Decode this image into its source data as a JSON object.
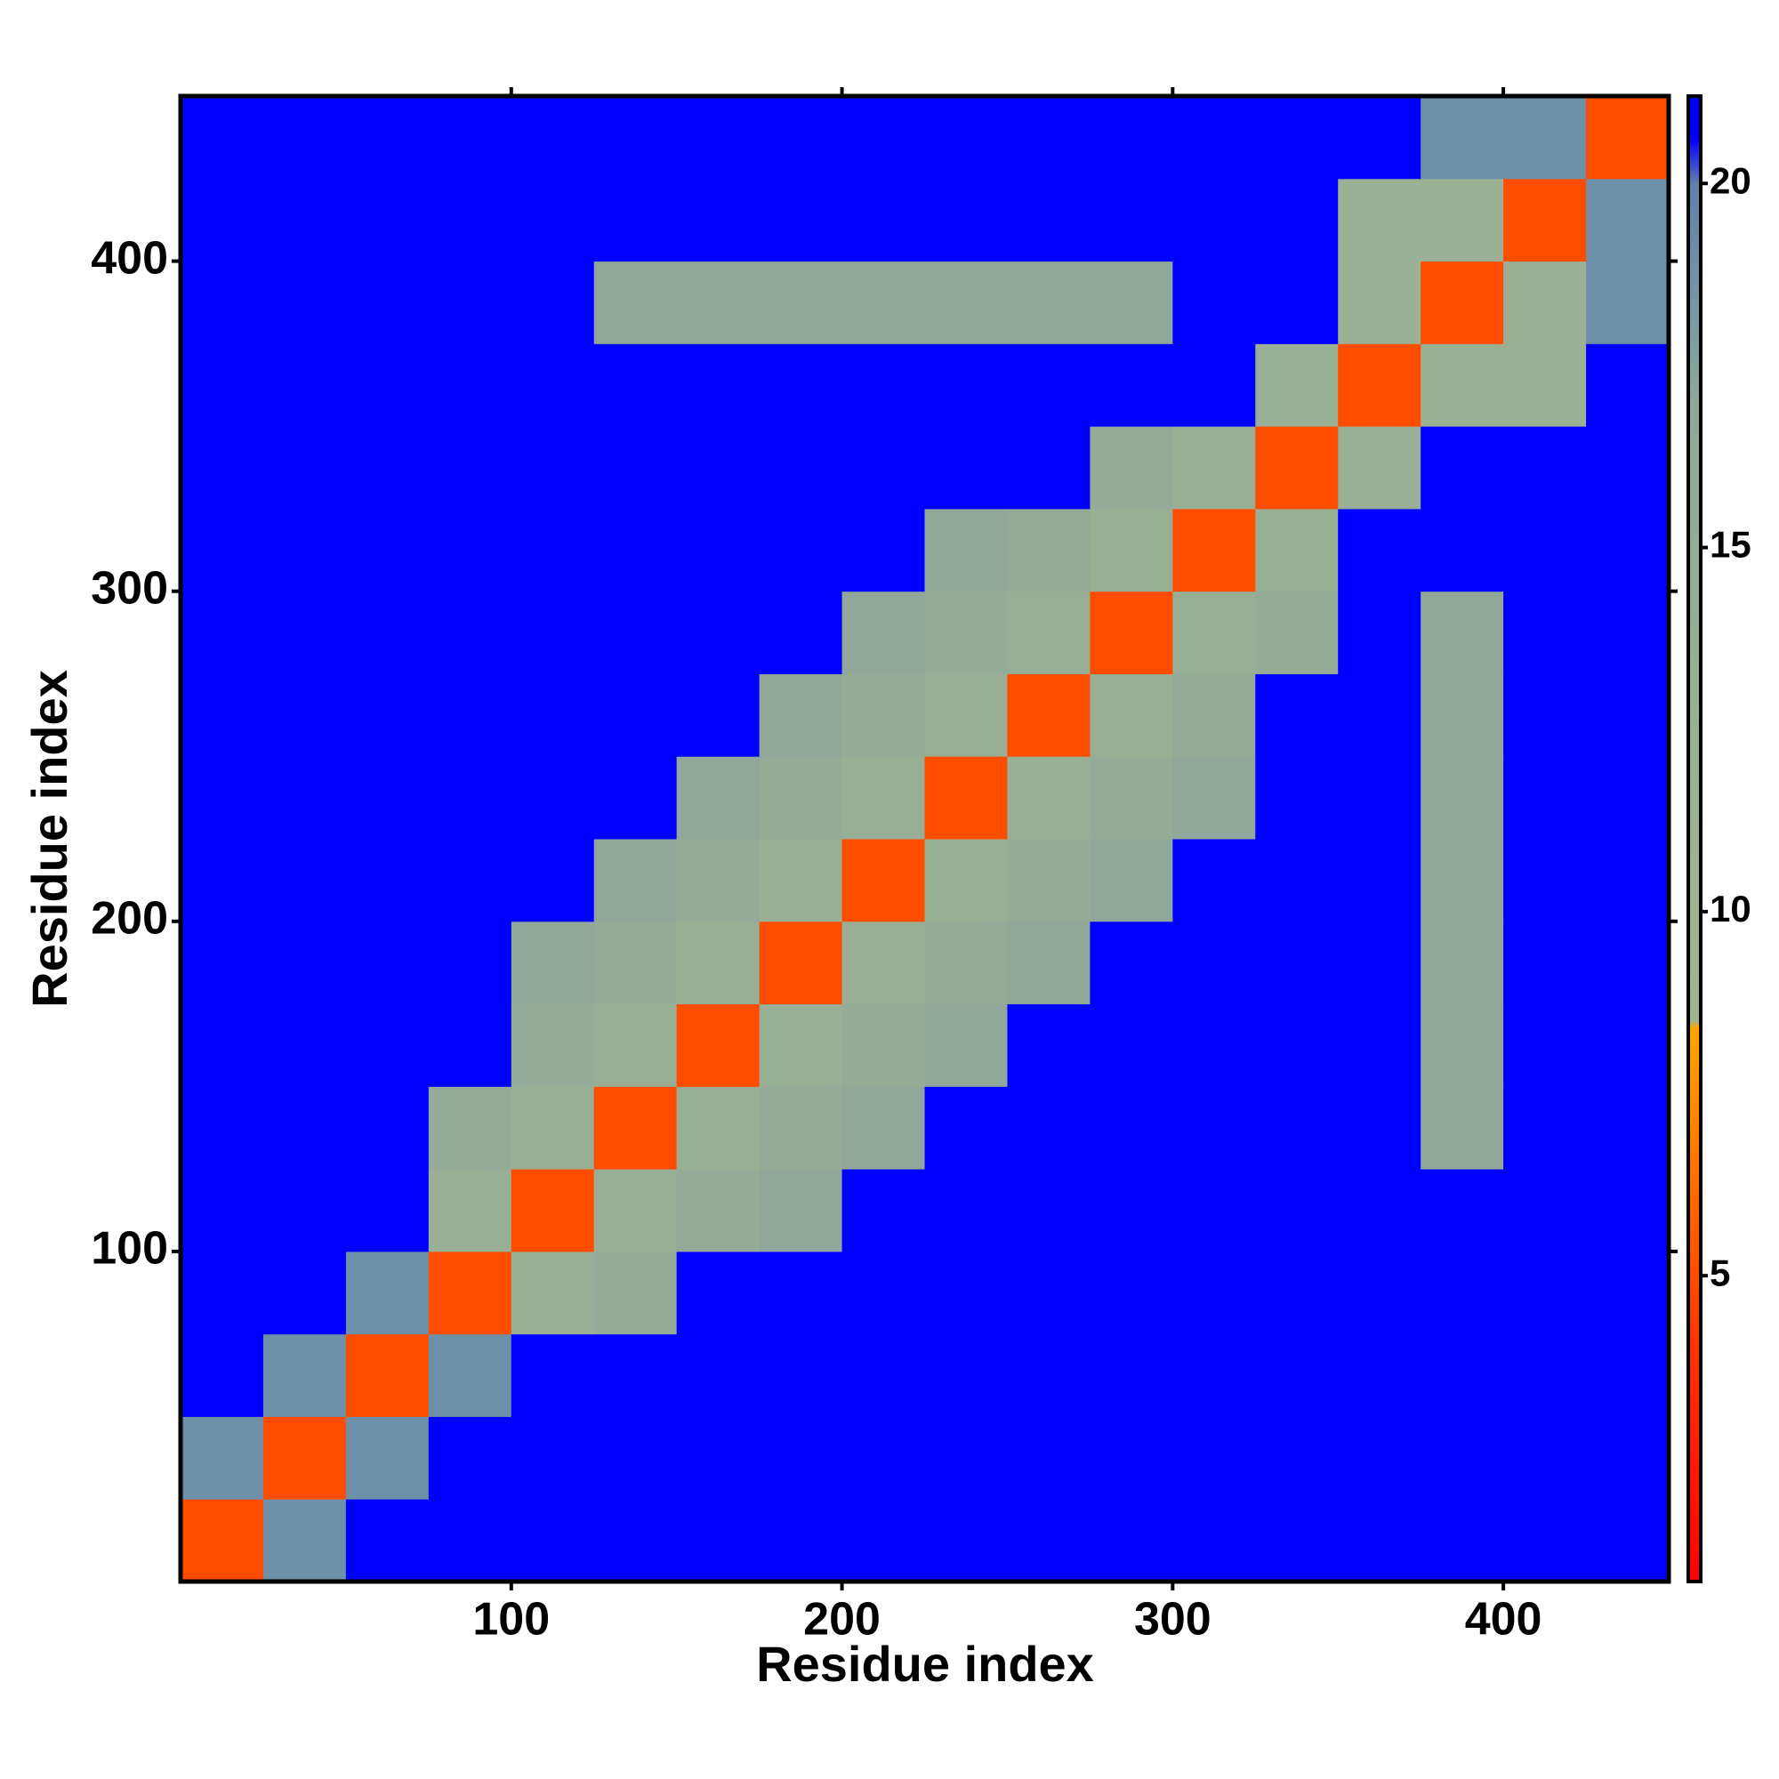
{
  "chart_data": {
    "type": "heatmap",
    "x_label": "Residue index",
    "y_label": "Residue index",
    "x_bins": [
      0,
      25,
      50,
      75,
      100,
      125,
      150,
      175,
      200,
      225,
      250,
      275,
      300,
      325,
      350,
      375,
      400,
      425,
      450
    ],
    "y_bins": [
      0,
      25,
      50,
      75,
      100,
      125,
      150,
      175,
      200,
      225,
      250,
      275,
      300,
      325,
      350,
      375,
      400,
      425,
      450
    ],
    "xlim": [
      0,
      450
    ],
    "ylim": [
      0,
      450
    ],
    "xticks": [
      100,
      200,
      300,
      400
    ],
    "yticks": [
      100,
      200,
      300,
      400
    ],
    "zlim": [
      0.8,
      21.2
    ],
    "colorbar_ticks": [
      5,
      10,
      15,
      20
    ],
    "colorscale": [
      [
        0.8,
        "#ff0000"
      ],
      [
        4,
        "#ff3300"
      ],
      [
        8.4,
        "#ffa500"
      ],
      [
        8.5,
        "#a3b58f"
      ],
      [
        17,
        "#8fa89a"
      ],
      [
        20,
        "#5c82ad"
      ],
      [
        20.6,
        "#0000ff"
      ],
      [
        21.2,
        "#0000ff"
      ]
    ],
    "z": [
      [
        5,
        19,
        21,
        21,
        21,
        21,
        21,
        21,
        21,
        21,
        21,
        21,
        21,
        21,
        21,
        21,
        21,
        21
      ],
      [
        19,
        5,
        19,
        21,
        21,
        21,
        21,
        21,
        21,
        21,
        21,
        21,
        21,
        21,
        21,
        21,
        21,
        21
      ],
      [
        21,
        19,
        5,
        19,
        21,
        21,
        21,
        21,
        21,
        21,
        21,
        21,
        21,
        21,
        21,
        21,
        21,
        21
      ],
      [
        21,
        21,
        19,
        5,
        13,
        15,
        21,
        21,
        21,
        21,
        21,
        21,
        21,
        21,
        21,
        21,
        21,
        21
      ],
      [
        21,
        21,
        21,
        13,
        5,
        13,
        15,
        17,
        21,
        21,
        21,
        21,
        21,
        21,
        21,
        21,
        21,
        21
      ],
      [
        21,
        21,
        21,
        15,
        13,
        5,
        13,
        15,
        17,
        21,
        21,
        21,
        21,
        21,
        21,
        17,
        21,
        21
      ],
      [
        21,
        21,
        21,
        21,
        15,
        13,
        5,
        13,
        15,
        17,
        21,
        21,
        21,
        21,
        21,
        17,
        21,
        21
      ],
      [
        21,
        21,
        21,
        21,
        17,
        15,
        13,
        5,
        13,
        15,
        17,
        21,
        21,
        21,
        21,
        17,
        21,
        21
      ],
      [
        21,
        21,
        21,
        21,
        21,
        17,
        15,
        13,
        5,
        13,
        15,
        17,
        21,
        21,
        21,
        17,
        21,
        21
      ],
      [
        21,
        21,
        21,
        21,
        21,
        21,
        17,
        15,
        13,
        5,
        13,
        15,
        17,
        21,
        21,
        17,
        21,
        21
      ],
      [
        21,
        21,
        21,
        21,
        21,
        21,
        21,
        17,
        15,
        13,
        5,
        13,
        15,
        21,
        21,
        17,
        21,
        21
      ],
      [
        21,
        21,
        21,
        21,
        21,
        21,
        21,
        21,
        17,
        15,
        13,
        5,
        13,
        15,
        21,
        17,
        21,
        21
      ],
      [
        21,
        21,
        21,
        21,
        21,
        21,
        21,
        21,
        21,
        17,
        15,
        13,
        5,
        13,
        21,
        21,
        21,
        21
      ],
      [
        21,
        21,
        21,
        21,
        21,
        21,
        21,
        21,
        21,
        21,
        21,
        15,
        13,
        5,
        13,
        21,
        21,
        21
      ],
      [
        21,
        21,
        21,
        21,
        21,
        21,
        21,
        21,
        21,
        21,
        21,
        21,
        21,
        13,
        5,
        12,
        12,
        21
      ],
      [
        21,
        21,
        21,
        21,
        21,
        17,
        17,
        17,
        17,
        17,
        17,
        17,
        21,
        21,
        12,
        5,
        12,
        19
      ],
      [
        21,
        21,
        21,
        21,
        21,
        21,
        21,
        21,
        21,
        21,
        21,
        21,
        21,
        21,
        12,
        12,
        5,
        19
      ],
      [
        21,
        21,
        21,
        21,
        21,
        21,
        21,
        21,
        21,
        21,
        21,
        21,
        21,
        21,
        21,
        19,
        19,
        5
      ]
    ]
  }
}
